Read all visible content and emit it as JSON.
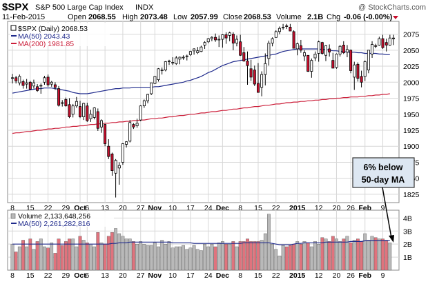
{
  "header": {
    "symbol": "$SPX",
    "name": "S&P 500 Large Cap Index",
    "exchange": "INDX",
    "copyright": "@ StockCharts.com",
    "date": "11-Feb-2015",
    "open_label": "Open",
    "open_value": "2068.55",
    "high_label": "High",
    "high_value": "2073.48",
    "low_label": "Low",
    "low_value": "2057.99",
    "close_label": "Close",
    "close_value": "2068.53",
    "volume_label": "Volume",
    "volume_value": "2.1B",
    "chg_label": "Chg",
    "chg_value": "-0.06 (-0.00%)"
  },
  "legend": {
    "price": "$SPX (Daily) 2068.53",
    "ma50": "MA(50) 2043.43",
    "ma200": "MA(200) 1981.85",
    "volume": "Volume 2,133,648,256",
    "vol_ma50": "MA(50) 2,261,282,816"
  },
  "annotation": {
    "line1": "6% below",
    "line2": "50-day MA"
  },
  "colors": {
    "up": "#ffffff",
    "down": "#c8102e",
    "ma50": "#1f2a8c",
    "ma200": "#cc1f3a",
    "vol_up": "#b9b9b9",
    "vol_down": "#e0737d",
    "grid": "#d7d7d7",
    "annot_bg": "#dde7f2"
  },
  "chart_data": {
    "type": "candlestick",
    "title": "$SPX S&P 500 Large Cap Index (Daily)",
    "x_tick_labels": [
      "8",
      "15",
      "22",
      "29",
      "Oct",
      "6",
      "13",
      "20",
      "27",
      "Nov",
      "10",
      "17",
      "24",
      "Dec",
      "8",
      "15",
      "22",
      "2015",
      "12",
      "20",
      "26",
      "Feb",
      "9"
    ],
    "x_tick_index": [
      0,
      5,
      10,
      15,
      19,
      21,
      26,
      31,
      36,
      40,
      45,
      50,
      55,
      59,
      64,
      69,
      74,
      80,
      86,
      91,
      95,
      99,
      104
    ],
    "x_bold_ticks": [
      "Oct",
      "Nov",
      "Dec",
      "2015",
      "Feb"
    ],
    "price_axis": {
      "ticks": [
        1825,
        1850,
        1875,
        1900,
        1925,
        1950,
        1975,
        2000,
        2025,
        2050,
        2075
      ],
      "ylim": [
        1812,
        2095
      ]
    },
    "volume_axis": {
      "ticks": [
        "1B",
        "2B",
        "3B",
        "4B"
      ],
      "tick_values": [
        1,
        2,
        3,
        4
      ],
      "ylim": [
        0,
        4.6
      ]
    },
    "ohlc": [
      [
        2006,
        2013,
        1998,
        2007
      ],
      [
        2007,
        2010,
        1998,
        2002
      ],
      [
        1999,
        2012,
        1995,
        2009
      ],
      [
        2001,
        2004,
        1990,
        1995
      ],
      [
        1997,
        2005,
        1990,
        1999
      ],
      [
        2000,
        2002,
        1988,
        1989
      ],
      [
        1994,
        2004,
        1990,
        1999
      ],
      [
        1993,
        1997,
        1985,
        1987
      ],
      [
        1995,
        1998,
        1982,
        1995
      ],
      [
        2000,
        2010,
        1996,
        2007
      ],
      [
        2008,
        2012,
        1993,
        1996
      ],
      [
        1997,
        2002,
        1993,
        2000
      ],
      [
        1996,
        2000,
        1988,
        1992
      ],
      [
        1990,
        1994,
        1962,
        1964
      ],
      [
        1968,
        1972,
        1962,
        1967
      ],
      [
        1973,
        1976,
        1962,
        1963
      ],
      [
        1965,
        1975,
        1944,
        1946
      ],
      [
        1950,
        1966,
        1945,
        1963
      ],
      [
        1963,
        1977,
        1960,
        1970
      ],
      [
        1962,
        1971,
        1944,
        1946
      ],
      [
        1946,
        1968,
        1941,
        1967
      ],
      [
        1963,
        1968,
        1938,
        1940
      ],
      [
        1943,
        1957,
        1938,
        1950
      ],
      [
        1945,
        1961,
        1942,
        1960
      ],
      [
        1954,
        1959,
        1924,
        1928
      ],
      [
        1930,
        1942,
        1921,
        1940
      ],
      [
        1934,
        1935,
        1900,
        1904
      ],
      [
        1900,
        1911,
        1880,
        1884
      ],
      [
        1888,
        1890,
        1854,
        1862
      ],
      [
        1858,
        1880,
        1820,
        1878
      ],
      [
        1866,
        1875,
        1840,
        1870
      ],
      [
        1875,
        1905,
        1871,
        1904
      ],
      [
        1903,
        1908,
        1898,
        1907
      ],
      [
        1908,
        1941,
        1906,
        1937
      ],
      [
        1934,
        1936,
        1927,
        1930
      ],
      [
        1932,
        1943,
        1929,
        1936
      ],
      [
        1941,
        1964,
        1939,
        1963
      ],
      [
        1963,
        1973,
        1960,
        1971
      ],
      [
        1971,
        1982,
        1967,
        1981
      ],
      [
        1982,
        1999,
        1980,
        1999
      ],
      [
        1998,
        2010,
        1997,
        2009
      ],
      [
        2004,
        2022,
        2001,
        2021
      ],
      [
        2018,
        2023,
        2012,
        2019
      ],
      [
        2019,
        2033,
        2017,
        2032
      ],
      [
        2033,
        2035,
        2027,
        2033
      ],
      [
        2031,
        2039,
        2027,
        2031
      ],
      [
        2029,
        2041,
        2027,
        2038
      ],
      [
        2036,
        2040,
        2028,
        2039
      ],
      [
        2039,
        2042,
        2035,
        2039
      ],
      [
        2040,
        2043,
        2034,
        2041
      ],
      [
        2043,
        2049,
        2041,
        2048
      ],
      [
        2049,
        2053,
        2043,
        2052
      ],
      [
        2046,
        2055,
        2044,
        2049
      ],
      [
        2048,
        2057,
        2047,
        2055
      ],
      [
        2058,
        2064,
        2052,
        2062
      ],
      [
        2063,
        2069,
        2061,
        2068
      ],
      [
        2068,
        2072,
        2064,
        2070
      ],
      [
        2070,
        2076,
        2063,
        2066
      ],
      [
        2066,
        2073,
        2055,
        2067
      ],
      [
        2067,
        2075,
        2054,
        2074
      ],
      [
        2074,
        2078,
        2060,
        2069
      ],
      [
        2073,
        2079,
        2064,
        2077
      ],
      [
        2075,
        2078,
        2050,
        2061
      ],
      [
        2061,
        2073,
        2056,
        2067
      ],
      [
        2063,
        2074,
        2041,
        2042
      ],
      [
        2046,
        2055,
        2032,
        2033
      ],
      [
        2033,
        2048,
        1996,
        2026
      ],
      [
        2021,
        2035,
        2002,
        2008
      ],
      [
        2019,
        2026,
        1994,
        1997
      ],
      [
        1998,
        2030,
        1984,
        1984
      ],
      [
        1992,
        2017,
        1978,
        2012
      ],
      [
        2012,
        2045,
        1995,
        2029
      ],
      [
        2037,
        2065,
        2026,
        2061
      ],
      [
        2061,
        2070,
        2056,
        2068
      ],
      [
        2070,
        2081,
        2070,
        2079
      ],
      [
        2079,
        2087,
        2075,
        2084
      ],
      [
        2085,
        2091,
        2082,
        2086
      ],
      [
        2088,
        2091,
        2083,
        2087
      ],
      [
        2086,
        2091,
        2080,
        2080
      ],
      [
        2079,
        2081,
        2053,
        2053
      ],
      [
        2052,
        2062,
        2042,
        2060
      ],
      [
        2057,
        2066,
        2046,
        2050
      ],
      [
        2041,
        2050,
        2033,
        2046
      ],
      [
        2042,
        2042,
        2016,
        2017
      ],
      [
        2017,
        2037,
        2007,
        2034
      ],
      [
        2038,
        2048,
        2033,
        2044
      ],
      [
        2045,
        2065,
        2032,
        2063
      ],
      [
        2062,
        2063,
        2043,
        2045
      ],
      [
        2042,
        2058,
        2033,
        2057
      ],
      [
        2052,
        2059,
        2040,
        2047
      ],
      [
        2034,
        2046,
        2022,
        2022
      ],
      [
        2023,
        2045,
        2021,
        2044
      ],
      [
        2044,
        2058,
        2040,
        2056
      ],
      [
        2058,
        2064,
        2044,
        2046
      ],
      [
        2047,
        2058,
        2039,
        2051
      ],
      [
        2050,
        2051,
        2014,
        2018
      ],
      [
        2008,
        2032,
        1988,
        2027
      ],
      [
        2028,
        2031,
        2001,
        2006
      ],
      [
        2009,
        2018,
        1992,
        2000
      ],
      [
        2009,
        2034,
        2002,
        2032
      ],
      [
        2019,
        2050,
        2014,
        2050
      ],
      [
        2044,
        2064,
        2038,
        2059
      ],
      [
        2057,
        2060,
        2053,
        2056
      ],
      [
        2058,
        2071,
        2057,
        2068
      ],
      [
        2068,
        2074,
        2052,
        2054
      ],
      [
        2062,
        2068,
        2048,
        2058
      ],
      [
        2058,
        2074,
        2057,
        2069
      ],
      [
        2068,
        2074,
        2058,
        2069
      ]
    ],
    "volume_billions": [
      2.0,
      1.4,
      1.8,
      2.3,
      1.8,
      2.4,
      1.6,
      2.2,
      2.4,
      1.8,
      1.7,
      2.1,
      1.3,
      2.4,
      1.9,
      2.2,
      2.4,
      2.4,
      1.8,
      2.6,
      2.3,
      2.1,
      2.0,
      1.8,
      2.9,
      2.1,
      2.0,
      2.6,
      2.9,
      3.2,
      2.8,
      2.6,
      2.4,
      2.4,
      2.2,
      2.0,
      2.2,
      2.0,
      1.9,
      1.9,
      2.1,
      1.8,
      2.3,
      2.0,
      2.2,
      1.7,
      1.8,
      1.8,
      1.9,
      1.6,
      1.7,
      1.9,
      1.6,
      1.5,
      2.0,
      1.8,
      2.0,
      1.8,
      2.1,
      2.2,
      2.0,
      2.0,
      2.2,
      1.8,
      2.2,
      2.2,
      2.4,
      2.2,
      2.2,
      2.2,
      2.3,
      2.8,
      4.3,
      2.0,
      1.6,
      1.1,
      1.9,
      1.8,
      1.9,
      2.0,
      2.2,
      2.0,
      2.2,
      2.1,
      1.8,
      2.2,
      2.0,
      2.5,
      2.4,
      2.2,
      2.6,
      2.4,
      2.2,
      2.4,
      2.6,
      2.1,
      2.3,
      2.4,
      2.2,
      2.8,
      2.3,
      2.6,
      2.5,
      2.4,
      2.4,
      2.3,
      2.1
    ],
    "ma50": [
      1983,
      1984,
      1985,
      1986,
      1987,
      1988,
      1989,
      1990,
      1990,
      1991,
      1991,
      1991,
      1990,
      1989,
      1988,
      1987,
      1986,
      1984,
      1983,
      1982,
      1982,
      1982,
      1983,
      1984,
      1985,
      1986,
      1987,
      1988,
      1989,
      1990,
      1990,
      1991,
      1991,
      1991,
      1992,
      1992,
      1992,
      1992,
      1992,
      1992,
      1993,
      1993,
      1994,
      1995,
      1996,
      1997,
      1998,
      1999,
      2000,
      2002,
      2003,
      2005,
      2007,
      2009,
      2012,
      2015,
      2017,
      2020,
      2023,
      2026,
      2028,
      2030,
      2032,
      2033,
      2034,
      2035,
      2036,
      2037,
      2038,
      2039,
      2040,
      2041,
      2042,
      2043,
      2044,
      2046,
      2048,
      2049,
      2050,
      2051,
      2052,
      2052,
      2052,
      2052,
      2052,
      2052,
      2052,
      2051,
      2051,
      2050,
      2049,
      2049,
      2048,
      2048,
      2047,
      2047,
      2047,
      2046,
      2046,
      2045,
      2045,
      2045,
      2045,
      2044,
      2044,
      2043,
      2043
    ],
    "ma200": [
      1920,
      1921,
      1921,
      1922,
      1923,
      1923,
      1924,
      1925,
      1925,
      1926,
      1927,
      1927,
      1928,
      1928,
      1929,
      1930,
      1930,
      1931,
      1931,
      1932,
      1932,
      1933,
      1934,
      1934,
      1935,
      1935,
      1936,
      1936,
      1937,
      1937,
      1938,
      1938,
      1939,
      1939,
      1940,
      1940,
      1941,
      1941,
      1942,
      1943,
      1943,
      1944,
      1944,
      1945,
      1946,
      1946,
      1947,
      1948,
      1948,
      1949,
      1950,
      1950,
      1951,
      1952,
      1952,
      1953,
      1954,
      1954,
      1955,
      1956,
      1956,
      1957,
      1958,
      1958,
      1959,
      1960,
      1960,
      1961,
      1962,
      1962,
      1963,
      1964,
      1964,
      1965,
      1966,
      1966,
      1967,
      1968,
      1968,
      1969,
      1969,
      1970,
      1970,
      1971,
      1971,
      1972,
      1972,
      1973,
      1973,
      1974,
      1974,
      1975,
      1975,
      1976,
      1976,
      1977,
      1977,
      1977,
      1978,
      1978,
      1979,
      1979,
      1980,
      1980,
      1981,
      1981,
      1982
    ],
    "vol_ma50": [
      2.0,
      2.0,
      2.0,
      2.0,
      2.0,
      2.0,
      2.0,
      2.0,
      2.0,
      2.0,
      2.0,
      2.0,
      2.0,
      2.0,
      2.0,
      2.0,
      2.0,
      2.0,
      2.0,
      2.0,
      2.0,
      2.0,
      2.0,
      2.0,
      2.0,
      2.0,
      2.0,
      2.0,
      2.05,
      2.05,
      2.1,
      2.1,
      2.1,
      2.15,
      2.15,
      2.15,
      2.15,
      2.15,
      2.15,
      2.15,
      2.15,
      2.15,
      2.15,
      2.15,
      2.15,
      2.1,
      2.1,
      2.1,
      2.1,
      2.1,
      2.1,
      2.05,
      2.05,
      2.05,
      2.05,
      2.05,
      2.05,
      2.05,
      2.05,
      2.05,
      2.05,
      2.05,
      2.05,
      2.05,
      2.05,
      2.1,
      2.1,
      2.1,
      2.1,
      2.1,
      2.1,
      2.1,
      2.1,
      2.05,
      2.0,
      1.95,
      1.95,
      1.95,
      1.95,
      2.0,
      2.05,
      2.05,
      2.1,
      2.1,
      2.1,
      2.1,
      2.1,
      2.1,
      2.15,
      2.15,
      2.15,
      2.15,
      2.15,
      2.15,
      2.15,
      2.2,
      2.2,
      2.2,
      2.2,
      2.25,
      2.25,
      2.25,
      2.25,
      2.25,
      2.25,
      2.25,
      2.25
    ]
  }
}
